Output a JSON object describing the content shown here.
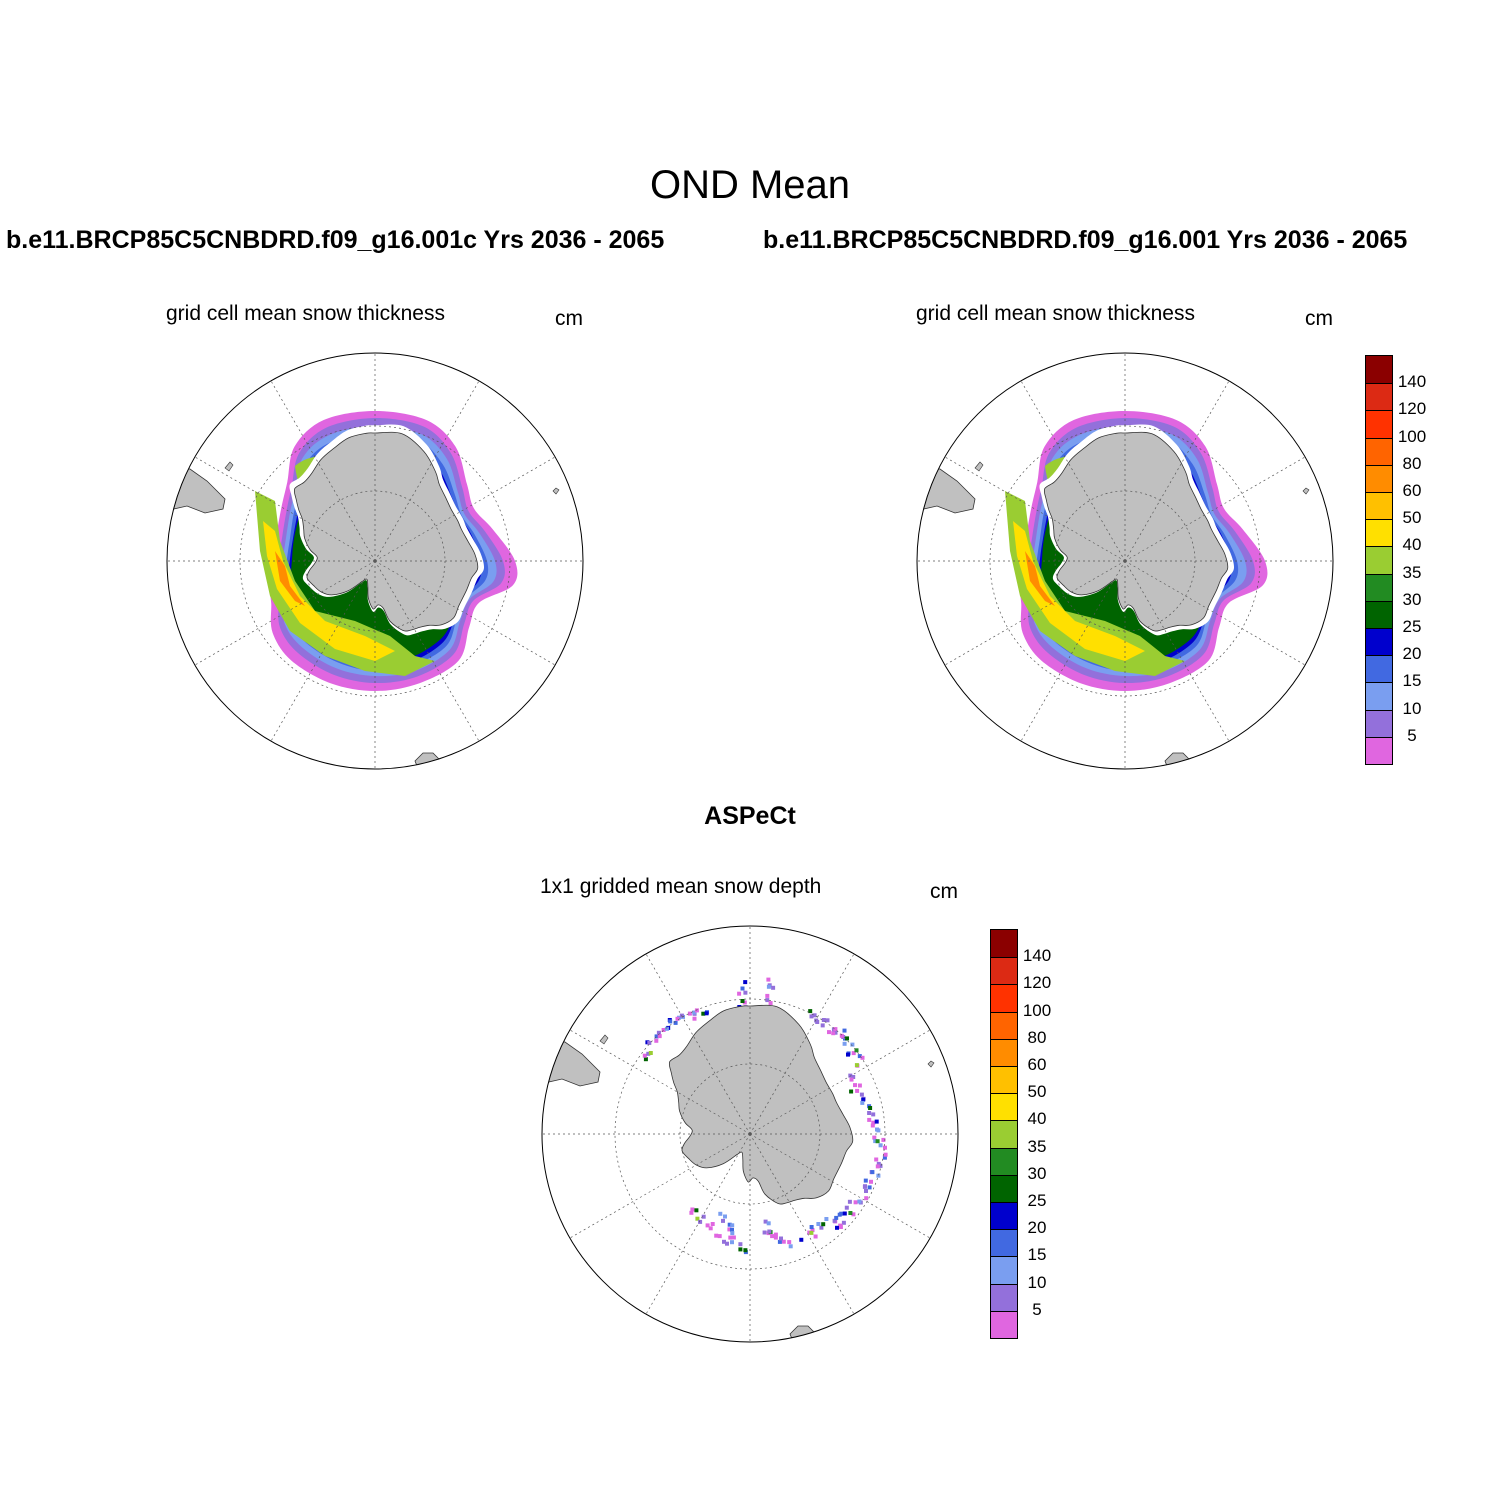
{
  "figure": {
    "title": "OND Mean",
    "panels": [
      {
        "id": "case-left",
        "case_title": "b.e11.BRCP85C5CNBDRD.f09_g16.001c  Yrs 2036 - 2065",
        "subtitle": "grid cell mean snow thickness",
        "units": "cm"
      },
      {
        "id": "case-right",
        "case_title": "b.e11.BRCP85C5CNBDRD.f09_g16.001  Yrs 2036 - 2065",
        "subtitle": "grid cell mean snow thickness",
        "units": "cm"
      },
      {
        "id": "observations",
        "case_title": "ASPeCt",
        "subtitle": "1x1 gridded mean snow depth",
        "units": "cm"
      }
    ],
    "colorbar": {
      "levels": [
        "5",
        "10",
        "15",
        "20",
        "25",
        "30",
        "35",
        "40",
        "50",
        "60",
        "80",
        "100",
        "120",
        "140"
      ],
      "colors": [
        "#e066e0",
        "#9370db",
        "#7a9ef0",
        "#4169e1",
        "#0000cd",
        "#006400",
        "#228b22",
        "#9acd32",
        "#ffe000",
        "#ffc000",
        "#ff8c00",
        "#ff6400",
        "#ff3200",
        "#dc2a14",
        "#8b0000"
      ]
    },
    "map_colors": {
      "land": "#c0c0c0",
      "ocean": "#ffffff"
    }
  }
}
